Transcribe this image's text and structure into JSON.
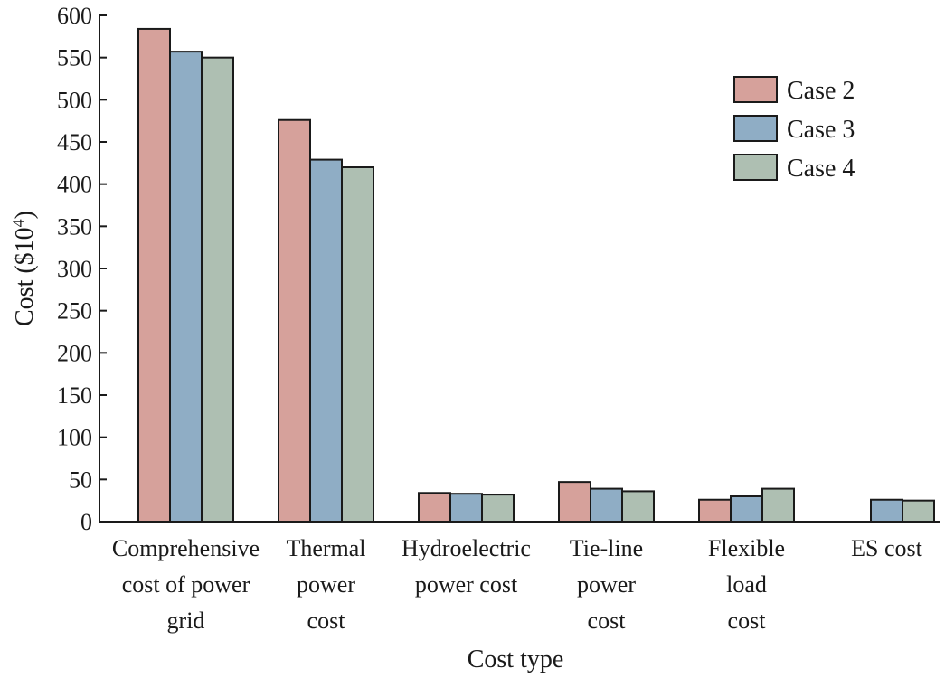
{
  "chart_data": {
    "type": "bar",
    "xlabel": "Cost type",
    "ylabel": "Cost ($10",
    "ylabel_superscript": "4",
    "ylabel_suffix": ")",
    "ylim": [
      0,
      600
    ],
    "yticks": [
      0,
      50,
      100,
      150,
      200,
      250,
      300,
      350,
      400,
      450,
      500,
      550,
      600
    ],
    "categories": [
      [
        "Comprehensive",
        "cost of power",
        "grid"
      ],
      [
        "Thermal",
        "power",
        "cost"
      ],
      [
        "Hydroelectric",
        "power cost"
      ],
      [
        "Tie-line",
        "power",
        "cost"
      ],
      [
        "Flexible",
        "load",
        "cost"
      ],
      [
        "ES cost"
      ]
    ],
    "series": [
      {
        "name": "Case 2",
        "color": "#d6a19b",
        "values": [
          584,
          476,
          34,
          47,
          26,
          null
        ]
      },
      {
        "name": "Case 3",
        "color": "#8fadc5",
        "values": [
          557,
          429,
          33,
          39,
          30,
          26
        ]
      },
      {
        "name": "Case 4",
        "color": "#aebfb2",
        "values": [
          550,
          420,
          32,
          36,
          39,
          25
        ]
      }
    ],
    "legend_position": "top-right",
    "grid": false
  }
}
